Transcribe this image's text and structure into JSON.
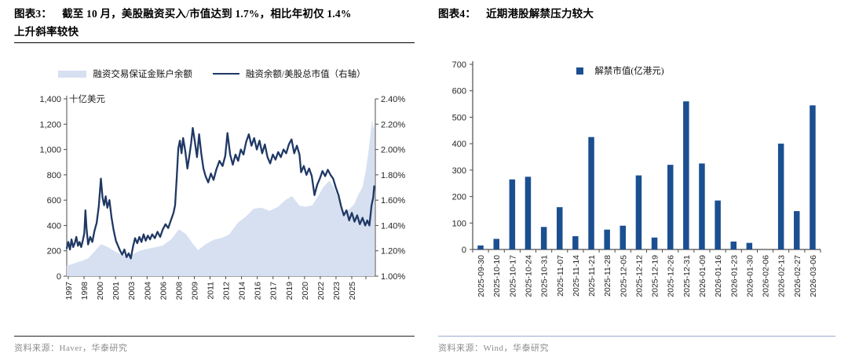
{
  "figure3": {
    "title_tag": "图表3：",
    "title_line1": "截至 10 月，美股融资买入/市值达到 1.7%，相比年初仅 1.4%",
    "title_line2": "上升斜率较快",
    "source": "资料来源：Haver，华泰研究"
  },
  "figure4": {
    "title_tag": "图表4：",
    "title": "近期港股解禁压力较大",
    "source": "资料来源：Wind，华泰研究"
  },
  "colors": {
    "area_fill": "#d7e0f1",
    "line": "#1f3864",
    "bar": "#1b4f91",
    "axis": "#4d4d4d",
    "tick_text": "#262626",
    "source_text": "#8c8c8c"
  },
  "chart_data": [
    {
      "type": "area",
      "subtype": "area+line combo",
      "title": "截至10月，美股融资买入/市值达到1.7%，相比年初仅1.4%上升斜率较快",
      "y_left": {
        "label": "十亿美元",
        "min": 0,
        "max": 1400,
        "tick_labels": [
          "1,400",
          "1,200",
          "1,000",
          "800",
          "600",
          "400",
          "200",
          "0"
        ]
      },
      "y_right": {
        "min": 1.0,
        "max": 2.4,
        "tick_labels": [
          "2.40%",
          "2.20%",
          "2.00%",
          "1.80%",
          "1.60%",
          "1.40%",
          "1.20%",
          "1.00%"
        ]
      },
      "x_domain": [
        1997,
        2025.9
      ],
      "x_tick_labels": [
        "1997",
        "1998",
        "2000",
        "2001",
        "2003",
        "2004",
        "2006",
        "2008",
        "2009",
        "2011",
        "2012",
        "2014",
        "2016",
        "2017",
        "2019",
        "2020",
        "2022",
        "2023",
        "2025"
      ],
      "legend_position": "top",
      "grid": false,
      "series": [
        {
          "name": "融资交易保证金账户余额",
          "kind": "area",
          "axis": "left",
          "points": [
            [
              1997.0,
              85
            ],
            [
              1997.5,
              95
            ],
            [
              1998.0,
              110
            ],
            [
              1998.5,
              122
            ],
            [
              1999.0,
              140
            ],
            [
              1999.5,
              185
            ],
            [
              2000.2,
              252
            ],
            [
              2000.8,
              232
            ],
            [
              2001.5,
              196
            ],
            [
              2002.3,
              162
            ],
            [
              2003.0,
              166
            ],
            [
              2003.8,
              200
            ],
            [
              2004.5,
              215
            ],
            [
              2005.2,
              226
            ],
            [
              2006.0,
              242
            ],
            [
              2006.8,
              292
            ],
            [
              2007.5,
              370
            ],
            [
              2008.2,
              330
            ],
            [
              2008.8,
              255
            ],
            [
              2009.3,
              205
            ],
            [
              2010.0,
              252
            ],
            [
              2010.8,
              288
            ],
            [
              2011.5,
              302
            ],
            [
              2012.2,
              328
            ],
            [
              2013.0,
              420
            ],
            [
              2013.8,
              472
            ],
            [
              2014.5,
              532
            ],
            [
              2015.2,
              540
            ],
            [
              2016.0,
              516
            ],
            [
              2016.8,
              548
            ],
            [
              2017.5,
              602
            ],
            [
              2018.1,
              632
            ],
            [
              2018.8,
              556
            ],
            [
              2019.4,
              548
            ],
            [
              2020.0,
              560
            ],
            [
              2020.6,
              640
            ],
            [
              2021.0,
              700
            ],
            [
              2021.6,
              756
            ],
            [
              2022.0,
              705
            ],
            [
              2022.5,
              600
            ],
            [
              2022.9,
              492
            ],
            [
              2023.4,
              525
            ],
            [
              2023.9,
              565
            ],
            [
              2024.3,
              640
            ],
            [
              2024.7,
              705
            ],
            [
              2025.0,
              830
            ],
            [
              2025.25,
              980
            ],
            [
              2025.45,
              1120
            ],
            [
              2025.6,
              1240
            ],
            [
              2025.7,
              1165
            ],
            [
              2025.83,
              1205
            ]
          ]
        },
        {
          "name": "融资余额/美股总市值（右轴）",
          "kind": "line",
          "axis": "right",
          "points": [
            [
              1997.0,
              1.22
            ],
            [
              1997.15,
              1.27
            ],
            [
              1997.3,
              1.21
            ],
            [
              1997.45,
              1.29
            ],
            [
              1997.6,
              1.23
            ],
            [
              1997.75,
              1.26
            ],
            [
              1997.9,
              1.31
            ],
            [
              1998.05,
              1.24
            ],
            [
              1998.2,
              1.27
            ],
            [
              1998.35,
              1.23
            ],
            [
              1998.5,
              1.28
            ],
            [
              1998.65,
              1.34
            ],
            [
              1998.75,
              1.52
            ],
            [
              1998.85,
              1.38
            ],
            [
              1999.0,
              1.25
            ],
            [
              1999.2,
              1.31
            ],
            [
              1999.4,
              1.27
            ],
            [
              1999.6,
              1.36
            ],
            [
              1999.8,
              1.42
            ],
            [
              2000.0,
              1.55
            ],
            [
              2000.2,
              1.77
            ],
            [
              2000.35,
              1.62
            ],
            [
              2000.5,
              1.56
            ],
            [
              2000.65,
              1.63
            ],
            [
              2000.8,
              1.54
            ],
            [
              2001.0,
              1.6
            ],
            [
              2001.2,
              1.46
            ],
            [
              2001.4,
              1.36
            ],
            [
              2001.6,
              1.28
            ],
            [
              2001.8,
              1.24
            ],
            [
              2002.0,
              1.2
            ],
            [
              2002.2,
              1.17
            ],
            [
              2002.4,
              1.21
            ],
            [
              2002.6,
              1.15
            ],
            [
              2002.8,
              1.18
            ],
            [
              2003.0,
              1.14
            ],
            [
              2003.2,
              1.23
            ],
            [
              2003.4,
              1.3
            ],
            [
              2003.6,
              1.26
            ],
            [
              2003.8,
              1.31
            ],
            [
              2004.0,
              1.27
            ],
            [
              2004.2,
              1.33
            ],
            [
              2004.4,
              1.28
            ],
            [
              2004.6,
              1.32
            ],
            [
              2004.8,
              1.29
            ],
            [
              2005.0,
              1.33
            ],
            [
              2005.25,
              1.3
            ],
            [
              2005.5,
              1.35
            ],
            [
              2005.75,
              1.31
            ],
            [
              2006.0,
              1.37
            ],
            [
              2006.25,
              1.41
            ],
            [
              2006.5,
              1.38
            ],
            [
              2006.75,
              1.44
            ],
            [
              2007.0,
              1.5
            ],
            [
              2007.15,
              1.56
            ],
            [
              2007.3,
              1.78
            ],
            [
              2007.45,
              2.01
            ],
            [
              2007.6,
              2.07
            ],
            [
              2007.75,
              1.97
            ],
            [
              2007.9,
              2.09
            ],
            [
              2008.1,
              1.99
            ],
            [
              2008.3,
              1.85
            ],
            [
              2008.5,
              1.96
            ],
            [
              2008.65,
              2.05
            ],
            [
              2008.8,
              2.17
            ],
            [
              2009.0,
              2.06
            ],
            [
              2009.2,
              1.94
            ],
            [
              2009.4,
              2.12
            ],
            [
              2009.6,
              1.97
            ],
            [
              2009.8,
              1.85
            ],
            [
              2010.0,
              1.79
            ],
            [
              2010.25,
              1.74
            ],
            [
              2010.5,
              1.81
            ],
            [
              2010.75,
              1.76
            ],
            [
              2011.0,
              1.84
            ],
            [
              2011.3,
              1.91
            ],
            [
              2011.6,
              1.87
            ],
            [
              2011.85,
              1.95
            ],
            [
              2012.05,
              2.13
            ],
            [
              2012.3,
              1.96
            ],
            [
              2012.55,
              1.88
            ],
            [
              2012.8,
              1.96
            ],
            [
              2013.05,
              1.91
            ],
            [
              2013.3,
              2.0
            ],
            [
              2013.55,
              1.96
            ],
            [
              2013.8,
              2.06
            ],
            [
              2014.05,
              2.12
            ],
            [
              2014.3,
              2.03
            ],
            [
              2014.55,
              2.09
            ],
            [
              2014.8,
              2.0
            ],
            [
              2015.05,
              2.07
            ],
            [
              2015.3,
              1.97
            ],
            [
              2015.55,
              2.04
            ],
            [
              2015.8,
              1.94
            ],
            [
              2016.05,
              1.89
            ],
            [
              2016.3,
              1.96
            ],
            [
              2016.55,
              1.92
            ],
            [
              2016.8,
              1.98
            ],
            [
              2017.05,
              1.94
            ],
            [
              2017.3,
              2.0
            ],
            [
              2017.55,
              1.97
            ],
            [
              2017.8,
              2.04
            ],
            [
              2018.05,
              2.08
            ],
            [
              2018.3,
              1.97
            ],
            [
              2018.55,
              2.03
            ],
            [
              2018.8,
              1.96
            ],
            [
              2018.95,
              1.82
            ],
            [
              2019.2,
              1.87
            ],
            [
              2019.45,
              1.8
            ],
            [
              2019.7,
              1.85
            ],
            [
              2019.95,
              1.79
            ],
            [
              2020.2,
              1.64
            ],
            [
              2020.45,
              1.72
            ],
            [
              2020.7,
              1.77
            ],
            [
              2020.95,
              1.83
            ],
            [
              2021.2,
              1.79
            ],
            [
              2021.45,
              1.84
            ],
            [
              2021.7,
              1.8
            ],
            [
              2021.95,
              1.77
            ],
            [
              2022.2,
              1.7
            ],
            [
              2022.45,
              1.64
            ],
            [
              2022.7,
              1.55
            ],
            [
              2022.95,
              1.48
            ],
            [
              2023.2,
              1.52
            ],
            [
              2023.45,
              1.44
            ],
            [
              2023.7,
              1.5
            ],
            [
              2023.95,
              1.43
            ],
            [
              2024.2,
              1.48
            ],
            [
              2024.45,
              1.41
            ],
            [
              2024.7,
              1.46
            ],
            [
              2024.95,
              1.4
            ],
            [
              2025.15,
              1.44
            ],
            [
              2025.35,
              1.4
            ],
            [
              2025.55,
              1.56
            ],
            [
              2025.7,
              1.62
            ],
            [
              2025.8,
              1.71
            ]
          ]
        }
      ]
    },
    {
      "type": "bar",
      "title": "近期港股解禁压力较大",
      "legend": "解禁市值(亿港元)",
      "ylim": [
        0,
        700
      ],
      "y_tick_labels": [
        "700",
        "600",
        "500",
        "400",
        "300",
        "200",
        "100",
        "0"
      ],
      "grid": false,
      "categories": [
        "2025-09-30",
        "2025-10-10",
        "2025-10-17",
        "2025-10-24",
        "2025-10-31",
        "2025-11-07",
        "2025-11-14",
        "2025-11-21",
        "2025-11-28",
        "2025-12-05",
        "2025-12-12",
        "2025-12-19",
        "2025-12-26",
        "2025-12-31",
        "2026-01-09",
        "2026-01-16",
        "2026-01-23",
        "2026-01-30",
        "2026-02-06",
        "2026-02-13",
        "2026-02-27",
        "2026-03-06"
      ],
      "values": [
        15,
        40,
        265,
        275,
        85,
        160,
        50,
        425,
        75,
        90,
        280,
        45,
        320,
        560,
        325,
        185,
        30,
        25,
        0,
        400,
        145,
        545
      ]
    }
  ]
}
